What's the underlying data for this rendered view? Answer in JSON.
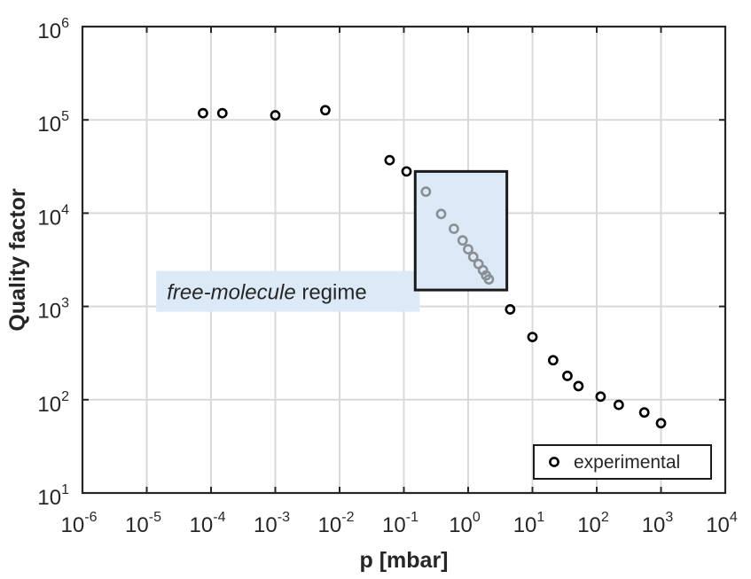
{
  "chart_data": {
    "type": "scatter",
    "xscale": "log",
    "yscale": "log",
    "xlabel": "p [mbar]",
    "ylabel": "Quality factor",
    "xlim": [
      1e-06,
      10000.0
    ],
    "ylim": [
      10,
      1000000.0
    ],
    "grid": true,
    "x_ticks": [
      {
        "base": "10",
        "exp": "-6"
      },
      {
        "base": "10",
        "exp": "-5"
      },
      {
        "base": "10",
        "exp": "-4"
      },
      {
        "base": "10",
        "exp": "-3"
      },
      {
        "base": "10",
        "exp": "-2"
      },
      {
        "base": "10",
        "exp": "-1"
      },
      {
        "base": "10",
        "exp": "0"
      },
      {
        "base": "10",
        "exp": "1"
      },
      {
        "base": "10",
        "exp": "2"
      },
      {
        "base": "10",
        "exp": "3"
      },
      {
        "base": "10",
        "exp": "4"
      }
    ],
    "y_ticks": [
      {
        "base": "10",
        "exp": "1"
      },
      {
        "base": "10",
        "exp": "2"
      },
      {
        "base": "10",
        "exp": "3"
      },
      {
        "base": "10",
        "exp": "4"
      },
      {
        "base": "10",
        "exp": "5"
      },
      {
        "base": "10",
        "exp": "6"
      }
    ],
    "series": [
      {
        "name": "experimental",
        "color": "#000000",
        "points": [
          [
            7.5e-05,
            118000
          ],
          [
            0.00015,
            118000
          ],
          [
            0.001,
            112000
          ],
          [
            0.006,
            127000
          ],
          [
            0.06,
            37000
          ],
          [
            0.11,
            28000
          ],
          [
            4.5,
            930
          ],
          [
            10,
            470
          ],
          [
            21,
            265
          ],
          [
            35,
            180
          ],
          [
            52,
            140
          ],
          [
            115,
            108
          ],
          [
            220,
            88
          ],
          [
            550,
            73
          ],
          [
            1000,
            56
          ]
        ]
      },
      {
        "color": "#8a8f94",
        "points": [
          [
            0.22,
            17000
          ],
          [
            0.38,
            9800
          ],
          [
            0.6,
            6800
          ],
          [
            0.82,
            5100
          ],
          [
            1.0,
            4100
          ],
          [
            1.2,
            3400
          ],
          [
            1.45,
            2850
          ],
          [
            1.7,
            2450
          ],
          [
            1.9,
            2150
          ],
          [
            2.1,
            1950
          ]
        ]
      }
    ],
    "highlight_box": {
      "x": [
        0.15,
        4.0
      ],
      "y": [
        1500,
        28000
      ],
      "fill": "#dce9f7",
      "stroke": "#1a1a1a"
    },
    "annotation": {
      "italic_text": "free-molecule",
      "text": " regime",
      "x": 1.5e-05,
      "y": 2200,
      "background": "#dce9f7"
    },
    "legend": {
      "label": "experimental",
      "placement": "bottom-right"
    }
  }
}
